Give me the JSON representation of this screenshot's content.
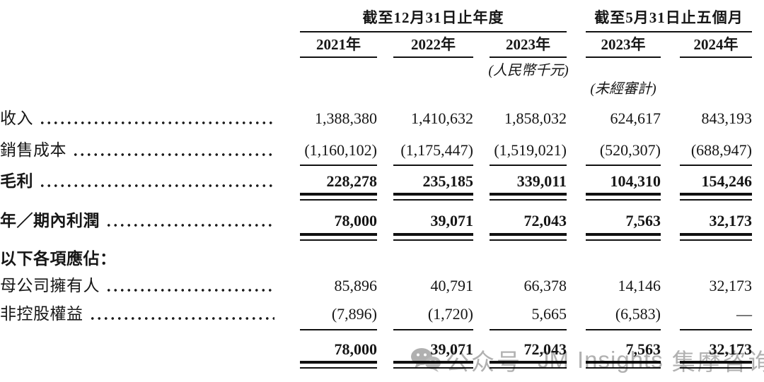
{
  "header": {
    "group_annual": "截至12月31日止年度",
    "group_five_months": "截至5月31日止五個月",
    "year_columns": [
      "2021年",
      "2022年",
      "2023年",
      "2023年",
      "2024年"
    ],
    "currency_note": "(人民幣千元)",
    "unaudited_note": "(未經審計)"
  },
  "rows": [
    {
      "label": "收入",
      "leader": true,
      "bold": false,
      "section": false,
      "values": [
        "1,388,380",
        "1,410,632",
        "1,858,032",
        "624,617",
        "843,193"
      ],
      "rule_below": "none"
    },
    {
      "label": "銷售成本",
      "leader": true,
      "bold": false,
      "section": false,
      "values": [
        "(1,160,102)",
        "(1,175,447)",
        "(1,519,021)",
        "(520,307)",
        "(688,947)"
      ],
      "rule_below": "thin"
    },
    {
      "label": "毛利",
      "leader": true,
      "bold": true,
      "section": false,
      "values": [
        "228,278",
        "235,185",
        "339,011",
        "104,310",
        "154,246"
      ],
      "rule_below": "double"
    },
    {
      "label": "年／期內利潤",
      "leader": true,
      "bold": true,
      "section": false,
      "values": [
        "78,000",
        "39,071",
        "72,043",
        "7,563",
        "32,173"
      ],
      "rule_below": "double"
    },
    {
      "label": "以下各項應佔：",
      "leader": false,
      "bold": true,
      "section": true,
      "values": [
        "",
        "",
        "",
        "",
        ""
      ],
      "rule_below": "none"
    },
    {
      "label": "母公司擁有人",
      "leader": true,
      "bold": false,
      "section": false,
      "values": [
        "85,896",
        "40,791",
        "66,378",
        "14,146",
        "32,173"
      ],
      "rule_below": "none"
    },
    {
      "label": "非控股權益",
      "leader": true,
      "bold": false,
      "section": false,
      "values": [
        "(7,896)",
        "(1,720)",
        "5,665",
        "(6,583)",
        "—"
      ],
      "rule_below": "thin"
    },
    {
      "label": "",
      "leader": false,
      "bold": true,
      "section": false,
      "values": [
        "78,000",
        "39,071",
        "72,043",
        "7,563",
        "32,173"
      ],
      "rule_below": "double"
    }
  ],
  "watermark": {
    "icon": "wechat-icon",
    "prefix": "公众号",
    "mid": "JM",
    "brand": "Insights",
    "suffix": "集摩咨询",
    "color": "#aaaaaa"
  },
  "colors": {
    "text": "#161616",
    "rule": "#101010",
    "background": "#ffffff"
  }
}
